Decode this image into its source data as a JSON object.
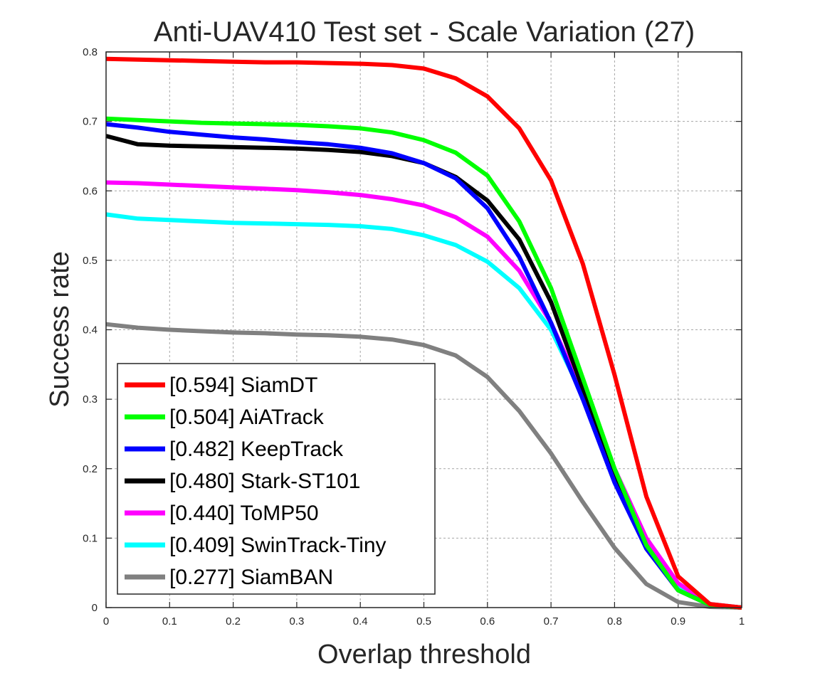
{
  "chart_data": {
    "type": "line",
    "title": "Anti-UAV410 Test set - Scale Variation (27)",
    "xlabel": "Overlap threshold",
    "ylabel": "Success rate",
    "xlim": [
      0,
      1
    ],
    "ylim": [
      0,
      0.8
    ],
    "grid": true,
    "legend_position": "bottom-left",
    "x": [
      0,
      0.05,
      0.1,
      0.15,
      0.2,
      0.25,
      0.3,
      0.35,
      0.4,
      0.45,
      0.5,
      0.55,
      0.6,
      0.65,
      0.7,
      0.75,
      0.8,
      0.85,
      0.9,
      0.95,
      1.0
    ],
    "x_ticks": [
      "0",
      "0.1",
      "0.2",
      "0.3",
      "0.4",
      "0.5",
      "0.6",
      "0.7",
      "0.8",
      "0.9",
      "1"
    ],
    "y_ticks": [
      "0",
      "0.1",
      "0.2",
      "0.3",
      "0.4",
      "0.5",
      "0.6",
      "0.7",
      "0.8"
    ],
    "series": [
      {
        "name": "SiamDT",
        "legend": "[0.594] SiamDT",
        "color": "#ff0000",
        "values": [
          0.79,
          0.789,
          0.788,
          0.787,
          0.786,
          0.785,
          0.785,
          0.784,
          0.783,
          0.781,
          0.776,
          0.762,
          0.736,
          0.69,
          0.615,
          0.495,
          0.335,
          0.16,
          0.045,
          0.005,
          0.0
        ]
      },
      {
        "name": "AiATrack",
        "legend": "[0.504] AiATrack",
        "color": "#00ff00",
        "values": [
          0.704,
          0.702,
          0.7,
          0.698,
          0.697,
          0.696,
          0.695,
          0.693,
          0.69,
          0.684,
          0.673,
          0.655,
          0.622,
          0.556,
          0.46,
          0.33,
          0.2,
          0.09,
          0.025,
          0.004,
          0.0
        ]
      },
      {
        "name": "KeepTrack",
        "legend": "[0.482] KeepTrack",
        "color": "#0000ff",
        "values": [
          0.696,
          0.691,
          0.685,
          0.681,
          0.677,
          0.674,
          0.67,
          0.667,
          0.662,
          0.654,
          0.64,
          0.618,
          0.575,
          0.505,
          0.41,
          0.3,
          0.18,
          0.085,
          0.025,
          0.004,
          0.0
        ]
      },
      {
        "name": "Stark-ST101",
        "legend": "[0.480] Stark-ST101",
        "color": "#000000",
        "values": [
          0.679,
          0.667,
          0.665,
          0.664,
          0.663,
          0.662,
          0.661,
          0.659,
          0.656,
          0.65,
          0.64,
          0.62,
          0.586,
          0.53,
          0.44,
          0.315,
          0.19,
          0.085,
          0.025,
          0.004,
          0.0
        ]
      },
      {
        "name": "ToMP50",
        "legend": "[0.440] ToMP50",
        "color": "#ff00ff",
        "values": [
          0.612,
          0.611,
          0.609,
          0.607,
          0.605,
          0.603,
          0.601,
          0.598,
          0.594,
          0.588,
          0.579,
          0.562,
          0.534,
          0.485,
          0.41,
          0.31,
          0.2,
          0.1,
          0.035,
          0.005,
          0.0
        ]
      },
      {
        "name": "SwinTrack-Tiny",
        "legend": "[0.409] SwinTrack-Tiny",
        "color": "#00ffff",
        "values": [
          0.566,
          0.56,
          0.558,
          0.556,
          0.554,
          0.553,
          0.552,
          0.551,
          0.549,
          0.545,
          0.536,
          0.522,
          0.498,
          0.46,
          0.4,
          0.305,
          0.195,
          0.095,
          0.03,
          0.005,
          0.0
        ]
      },
      {
        "name": "SiamBAN",
        "legend": "[0.277] SiamBAN",
        "color": "#808080",
        "values": [
          0.408,
          0.403,
          0.4,
          0.398,
          0.396,
          0.395,
          0.393,
          0.392,
          0.39,
          0.386,
          0.378,
          0.363,
          0.332,
          0.283,
          0.222,
          0.152,
          0.086,
          0.034,
          0.008,
          0.001,
          0.0
        ]
      }
    ]
  }
}
